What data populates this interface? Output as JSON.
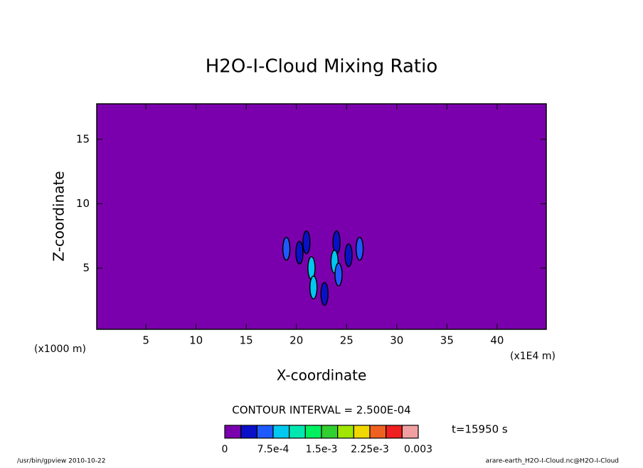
{
  "chart_data": {
    "type": "contour",
    "title": "H2O-I-Cloud Mixing Ratio",
    "x_label": "X-coordinate",
    "y_label": "Z-coordinate",
    "x_unit": "(x1000 m)",
    "x_scale_note": "(x1E4 m)",
    "contour_note": "CONTOUR INTERVAL = 2.500E-04",
    "time_label": "t=15950 s",
    "footer_left": "/usr/bin/gpview  2010-10-22",
    "footer_right": "arare-earth_H2O-I-Cloud.nc@H2O-I-Cloud",
    "xlim": [
      0.1,
      44.9
    ],
    "ylim": [
      0.25,
      17.75
    ],
    "xticks": [
      5,
      10,
      15,
      20,
      25,
      30,
      35,
      40
    ],
    "yticks": [
      5,
      10,
      15
    ],
    "clim": [
      0,
      0.003
    ],
    "levels": [
      0,
      {
        "value": 0.00075,
        "label": "7.5e-4"
      },
      {
        "value": 0.0015,
        "label": "1.5e-3"
      },
      {
        "value": 0.00225,
        "label": "2.25e-3"
      },
      0.003
    ],
    "colors": [
      "#7b00ad",
      "#0a10c8",
      "#1e5aff",
      "#00c8f0",
      "#00e8b0",
      "#00f060",
      "#30d030",
      "#a0e600",
      "#f0d800",
      "#f06020",
      "#f02020",
      "#f0a0a0"
    ],
    "features": {
      "x": [
        19.0,
        26.3,
        21.0,
        24.0,
        20.3,
        25.2,
        22.8,
        21.5,
        21.7,
        23.8,
        24.2
      ],
      "z": [
        6.5,
        6.5,
        7.0,
        7.0,
        6.2,
        6.0,
        3.0,
        5.0,
        3.5,
        5.5,
        4.5
      ],
      "values": [
        0.0005,
        0.0005,
        0.0003,
        0.0004,
        0.0003,
        0.0003,
        0.0003,
        0.0008,
        0.0009,
        0.0009,
        0.0006
      ]
    }
  }
}
